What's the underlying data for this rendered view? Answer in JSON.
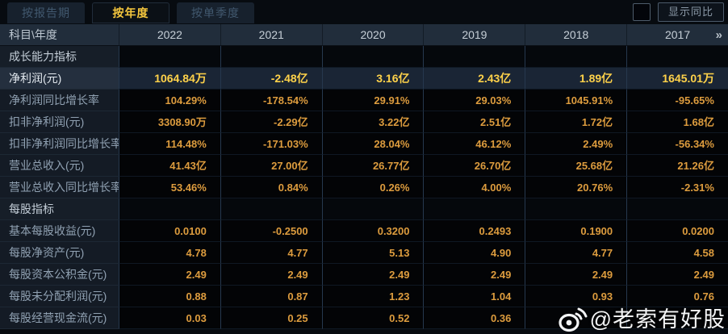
{
  "tabs": [
    {
      "label": "按报告期",
      "active": false
    },
    {
      "label": "按年度",
      "active": true
    },
    {
      "label": "按单季度",
      "active": false
    }
  ],
  "controls": {
    "checkbox_checked": false,
    "show_yoy_label": "显示同比"
  },
  "table": {
    "corner_label": "科目\\年度",
    "columns": [
      "2022",
      "2021",
      "2020",
      "2019",
      "2018",
      "2017"
    ],
    "more_years_icon": "»",
    "rows": [
      {
        "type": "section",
        "label": "成长能力指标",
        "values": [
          "",
          "",
          "",
          "",
          "",
          ""
        ]
      },
      {
        "type": "highlight",
        "label": "净利润(元)",
        "values": [
          "1064.84万",
          "-2.48亿",
          "3.16亿",
          "2.43亿",
          "1.89亿",
          "1645.01万"
        ]
      },
      {
        "type": "normal",
        "label": "净利润同比增长率",
        "values": [
          "104.29%",
          "-178.54%",
          "29.91%",
          "29.03%",
          "1045.91%",
          "-95.65%"
        ]
      },
      {
        "type": "normal",
        "label": "扣非净利润(元)",
        "values": [
          "3308.90万",
          "-2.29亿",
          "3.22亿",
          "2.51亿",
          "1.72亿",
          "1.68亿"
        ]
      },
      {
        "type": "normal",
        "label": "扣非净利润同比增长率",
        "values": [
          "114.48%",
          "-171.03%",
          "28.04%",
          "46.12%",
          "2.49%",
          "-56.34%"
        ]
      },
      {
        "type": "normal",
        "label": "营业总收入(元)",
        "values": [
          "41.43亿",
          "27.00亿",
          "26.77亿",
          "26.70亿",
          "25.68亿",
          "21.26亿"
        ]
      },
      {
        "type": "normal",
        "label": "营业总收入同比增长率",
        "values": [
          "53.46%",
          "0.84%",
          "0.26%",
          "4.00%",
          "20.76%",
          "-2.31%"
        ]
      },
      {
        "type": "section",
        "label": "每股指标",
        "values": [
          "",
          "",
          "",
          "",
          "",
          ""
        ]
      },
      {
        "type": "normal",
        "label": "基本每股收益(元)",
        "values": [
          "0.0100",
          "-0.2500",
          "0.3200",
          "0.2493",
          "0.1900",
          "0.0200"
        ]
      },
      {
        "type": "normal",
        "label": "每股净资产(元)",
        "values": [
          "4.78",
          "4.77",
          "5.13",
          "4.90",
          "4.77",
          "4.58"
        ]
      },
      {
        "type": "normal",
        "label": "每股资本公积金(元)",
        "values": [
          "2.49",
          "2.49",
          "2.49",
          "2.49",
          "2.49",
          "2.49"
        ]
      },
      {
        "type": "normal",
        "label": "每股未分配利润(元)",
        "values": [
          "0.88",
          "0.87",
          "1.23",
          "1.04",
          "0.93",
          "0.76"
        ]
      },
      {
        "type": "normal",
        "label": "每股经营现金流(元)",
        "values": [
          "0.03",
          "0.25",
          "0.52",
          "0.36",
          "",
          ""
        ]
      }
    ]
  },
  "watermark": {
    "icon": "weibo-icon",
    "handle": "@老索有好股"
  },
  "colors": {
    "accent_yellow": "#f6c73e",
    "value_orange": "#dd9c3e",
    "highlight_value": "#ffd24a",
    "highlight_row_bg": "#1a2535",
    "header_bg": "#212d3b",
    "label_col_bg": "#141b25",
    "page_bg": "#070b10"
  }
}
